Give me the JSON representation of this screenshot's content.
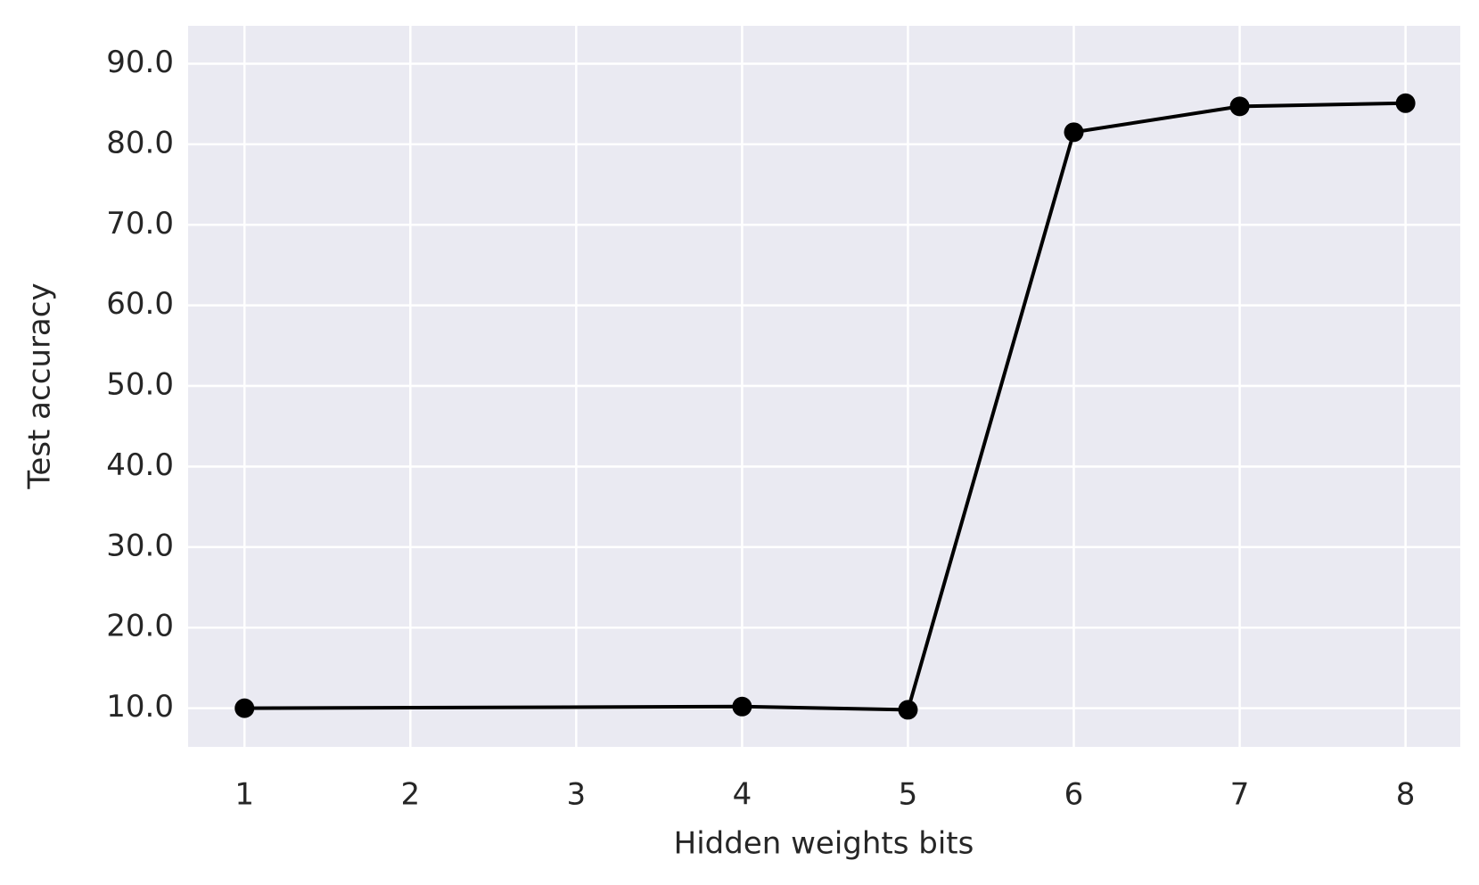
{
  "chart_data": {
    "type": "line",
    "x_label": "Hidden weights bits",
    "y_label": "Test accuracy",
    "x": [
      1,
      4,
      5,
      6,
      7,
      8
    ],
    "series": [
      {
        "color": "#000000",
        "values": [
          10.0,
          10.2,
          9.8,
          81.5,
          84.7,
          85.1
        ]
      }
    ],
    "xlim": [
      0.66,
      8.33
    ],
    "xticks": [
      1,
      2,
      3,
      4,
      5,
      6,
      7,
      8
    ],
    "ylim": [
      5.2,
      94.7
    ],
    "yticks": [
      {
        "value": 10,
        "label": "10.0"
      },
      {
        "value": 20,
        "label": "20.0"
      },
      {
        "value": 30,
        "label": "30.0"
      },
      {
        "value": 40,
        "label": "40.0"
      },
      {
        "value": 50,
        "label": "50.0"
      },
      {
        "value": 60,
        "label": "60.0"
      },
      {
        "value": 70,
        "label": "70.0"
      },
      {
        "value": 80,
        "label": "80.0"
      },
      {
        "value": 90,
        "label": "90.0"
      }
    ],
    "grid": true,
    "background": "#eaeaf2"
  }
}
